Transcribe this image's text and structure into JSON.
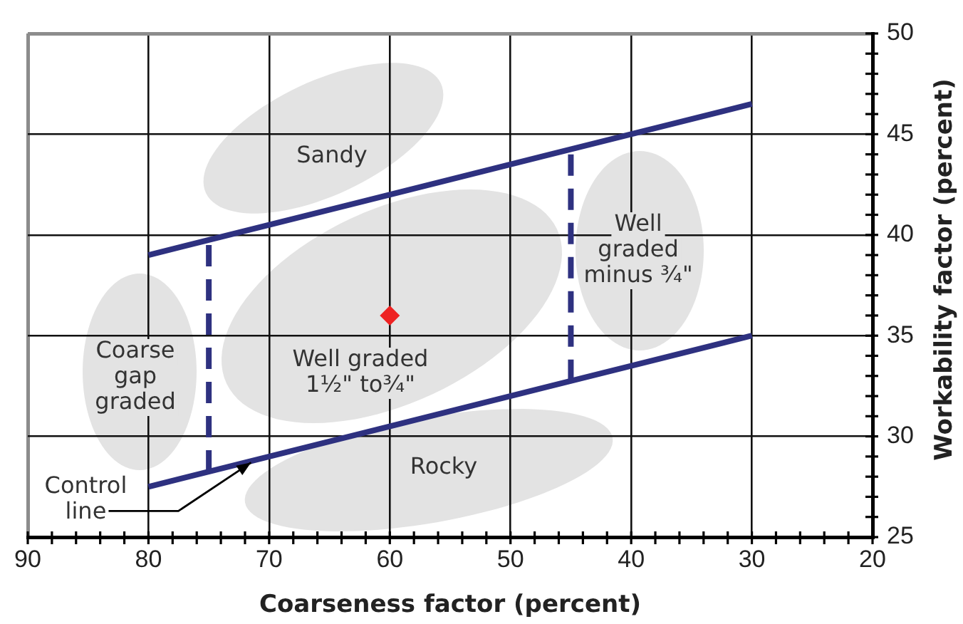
{
  "chart_data": {
    "type": "line",
    "xlabel": "Coarseness factor (percent)",
    "ylabel": "Workability factor (percent)",
    "xlim": [
      90,
      20
    ],
    "xticks": [
      90,
      {
        "value": 88,
        "label": null
      },
      {
        "value": 86,
        "label": null
      },
      {
        "value": 84,
        "label": null
      },
      {
        "value": 82,
        "label": null
      },
      80,
      {
        "value": 78,
        "label": null
      },
      {
        "value": 76,
        "label": null
      },
      {
        "value": 74,
        "label": null
      },
      {
        "value": 72,
        "label": null
      },
      70,
      {
        "value": 68,
        "label": null
      },
      {
        "value": 66,
        "label": null
      },
      {
        "value": 64,
        "label": null
      },
      {
        "value": 62,
        "label": null
      },
      60,
      {
        "value": 58,
        "label": null
      },
      {
        "value": 56,
        "label": null
      },
      {
        "value": 54,
        "label": null
      },
      {
        "value": 52,
        "label": null
      },
      50,
      {
        "value": 48,
        "label": null
      },
      {
        "value": 46,
        "label": null
      },
      {
        "value": 44,
        "label": null
      },
      {
        "value": 42,
        "label": null
      },
      40,
      {
        "value": 38,
        "label": null
      },
      {
        "value": 36,
        "label": null
      },
      {
        "value": 34,
        "label": null
      },
      {
        "value": 32,
        "label": null
      },
      30,
      {
        "value": 28,
        "label": null
      },
      {
        "value": 26,
        "label": null
      },
      {
        "value": 24,
        "label": null
      },
      {
        "value": 22,
        "label": null
      },
      20
    ],
    "ylim": [
      25,
      50
    ],
    "yticks": [
      25,
      {
        "value": 26,
        "label": null
      },
      {
        "value": 27,
        "label": null
      },
      {
        "value": 28,
        "label": null
      },
      {
        "value": 29,
        "label": null
      },
      30,
      {
        "value": 31,
        "label": null
      },
      {
        "value": 32,
        "label": null
      },
      {
        "value": 33,
        "label": null
      },
      {
        "value": 34,
        "label": null
      },
      35,
      {
        "value": 36,
        "label": null
      },
      {
        "value": 37,
        "label": null
      },
      {
        "value": 38,
        "label": null
      },
      {
        "value": 39,
        "label": null
      },
      40,
      {
        "value": 41,
        "label": null
      },
      {
        "value": 42,
        "label": null
      },
      {
        "value": 43,
        "label": null
      },
      {
        "value": 44,
        "label": null
      },
      45,
      {
        "value": 46,
        "label": null
      },
      {
        "value": 47,
        "label": null
      },
      {
        "value": 48,
        "label": null
      },
      {
        "value": 49,
        "label": null
      },
      50
    ],
    "grid": true,
    "series": [
      {
        "type": "line",
        "color": "#2e3180",
        "x": [
          80,
          30
        ],
        "values": [
          39,
          46.5
        ]
      },
      {
        "type": "line",
        "color": "#2e3180",
        "x": [
          80,
          30
        ],
        "values": [
          27.5,
          35
        ]
      },
      {
        "type": "line",
        "color": "#2e3180",
        "line_style": "dashed",
        "x": [
          75,
          75
        ],
        "values": [
          28.25,
          39.75
        ]
      },
      {
        "type": "line",
        "color": "#2e3180",
        "line_style": "dashed",
        "x": [
          45,
          45
        ],
        "values": [
          32.75,
          44.25
        ]
      },
      {
        "type": "scatter",
        "color": "#ee2222",
        "marker": "diamond",
        "x": [
          60
        ],
        "values": [
          36
        ]
      }
    ],
    "annotations": [
      "Sandy",
      "Well\ngraded\nminus ¾\"",
      "Coarse\ngap\ngraded",
      "Well graded\n1½\" to¾\"",
      "Rocky",
      {
        "text": "Control\nline",
        "x": 71.5,
        "y": 28.7
      }
    ]
  }
}
